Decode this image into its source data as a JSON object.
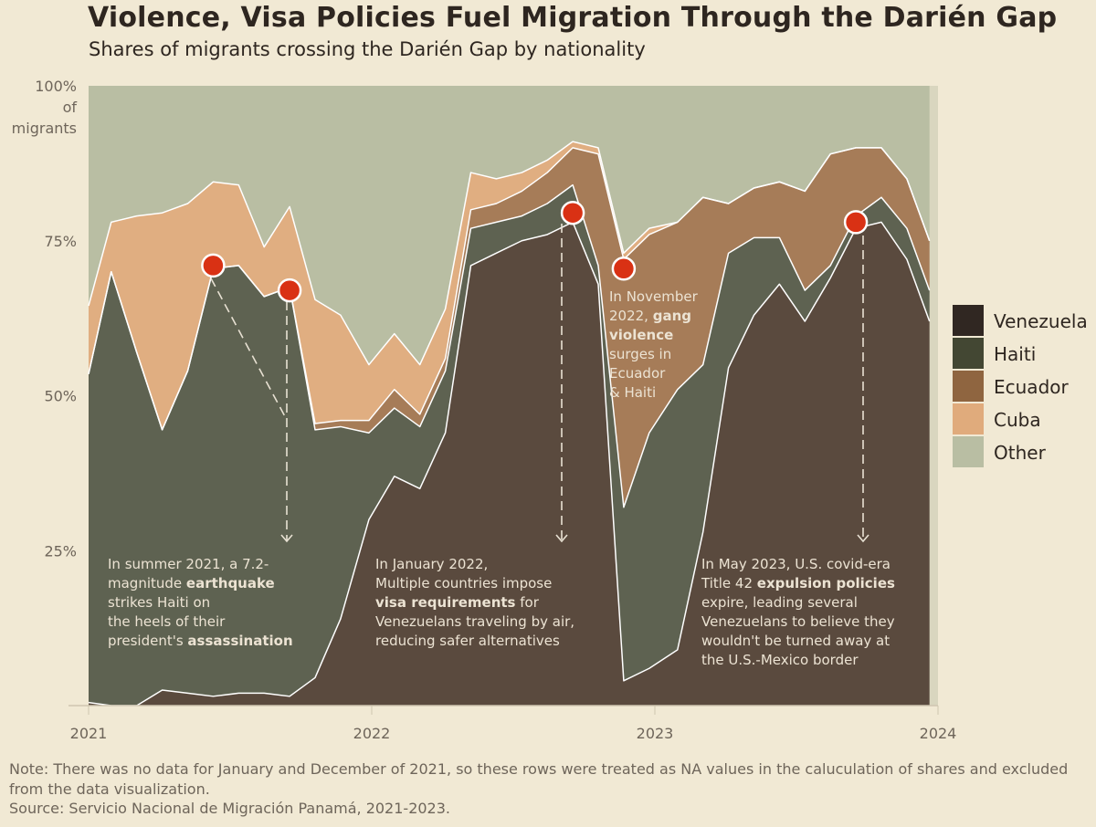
{
  "title": "Violence, Visa Policies Fuel Migration Through the Darién Gap",
  "subtitle": "Shares of migrants crossing the Darién Gap by nationality",
  "note": "Note: There was no data for January and December of 2021, so these rows were treated as NA values in the caluculation of shares and excluded from the data visualization.",
  "source": "Source: Servicio Nacional de Migración Panamá, 2021-2023.",
  "chart_data": {
    "type": "area",
    "stacked": true,
    "ylim": [
      0,
      100
    ],
    "y_ticks": [
      {
        "value": 100,
        "lines": [
          "100%",
          "of",
          "migrants"
        ]
      },
      {
        "value": 75,
        "lines": [
          "75%"
        ]
      },
      {
        "value": 50,
        "lines": [
          "50%"
        ]
      },
      {
        "value": 25,
        "lines": [
          "25%"
        ]
      }
    ],
    "x_ticks": [
      {
        "value": 2021.0,
        "label": "2021"
      },
      {
        "value": 2022.0,
        "label": "2022"
      },
      {
        "value": 2023.0,
        "label": "2023"
      },
      {
        "value": 2024.0,
        "label": "2024"
      }
    ],
    "xlim": [
      2021.0,
      2024.0
    ],
    "x": [
      2021.0,
      2021.08,
      2021.17,
      2021.26,
      2021.35,
      2021.44,
      2021.53,
      2021.62,
      2021.71,
      2021.8,
      2021.89,
      2021.99,
      2022.08,
      2022.17,
      2022.26,
      2022.35,
      2022.44,
      2022.53,
      2022.62,
      2022.71,
      2022.8,
      2022.89,
      2022.98,
      2023.08,
      2023.17,
      2023.26,
      2023.35,
      2023.44,
      2023.53,
      2023.62,
      2023.71,
      2023.8,
      2023.89,
      2023.97
    ],
    "series": [
      {
        "name": "Venezuela",
        "color": "#5a4a3e",
        "values": [
          0.5,
          0,
          0,
          2.5,
          2,
          1.5,
          2,
          2,
          1.5,
          4.5,
          14,
          30,
          37,
          35,
          44,
          71,
          73,
          75,
          76,
          78,
          68,
          4,
          6,
          9,
          28,
          54.5,
          63,
          68,
          62,
          69,
          77,
          78,
          72,
          62
        ]
      },
      {
        "name": "Haiti",
        "color": "#5e6251",
        "values": [
          53,
          70,
          57,
          42,
          52,
          69,
          69,
          64,
          66,
          40,
          31,
          14,
          11,
          10,
          10,
          6,
          5,
          4,
          5,
          6,
          3,
          28,
          38,
          42,
          27,
          18.5,
          12.5,
          7.5,
          5,
          2,
          2,
          4,
          5,
          5
        ]
      },
      {
        "name": "Ecuador",
        "color": "#a67c58",
        "values": [
          0,
          0,
          0,
          0,
          0,
          0,
          0,
          0,
          0,
          1,
          1,
          2,
          3,
          2,
          2,
          3,
          3,
          4,
          5,
          6,
          18,
          40,
          32,
          27,
          27,
          8,
          8,
          9,
          16,
          18,
          11,
          8,
          8,
          8
        ]
      },
      {
        "name": "Cuba",
        "color": "#e0ae81",
        "values": [
          11,
          8,
          22,
          35,
          27,
          14,
          13,
          8,
          13,
          20,
          17,
          9,
          9,
          8,
          8,
          6,
          4,
          3,
          2,
          1,
          1,
          1,
          1,
          0,
          0,
          0,
          0,
          0,
          0,
          0,
          0,
          0,
          0,
          0
        ]
      },
      {
        "name": "Other",
        "color": "#b9bea3",
        "values": [
          35.5,
          22,
          21,
          20.5,
          19,
          15.5,
          16,
          26,
          19.5,
          34.5,
          37,
          45,
          40,
          45,
          36,
          14,
          15,
          14,
          12,
          9,
          10,
          27,
          23,
          22,
          18,
          19,
          16.5,
          15.5,
          17,
          11,
          10,
          10,
          15,
          25
        ]
      }
    ],
    "legend": {
      "position": "right",
      "items": [
        {
          "label": "Venezuela",
          "color": "#302722"
        },
        {
          "label": "Haiti",
          "color": "#434733"
        },
        {
          "label": "Ecuador",
          "color": "#8f6540"
        },
        {
          "label": "Cuba",
          "color": "#e0ab7c"
        },
        {
          "label": "Other",
          "color": "#b9bea3"
        }
      ]
    },
    "markers": [
      {
        "x": 2021.44,
        "y": 71
      },
      {
        "x": 2021.71,
        "y": 67
      },
      {
        "x": 2022.71,
        "y": 79.5
      },
      {
        "x": 2022.89,
        "y": 70.5
      },
      {
        "x": 2023.71,
        "y": 78
      }
    ],
    "annotations": [
      {
        "lines": [
          [
            {
              "t": "In summer 2021, a 7.2-",
              "b": false
            }
          ],
          [
            {
              "t": "magnitude ",
              "b": false
            },
            {
              "t": "earthquake",
              "b": true
            }
          ],
          [
            {
              "t": "strikes Haiti on",
              "b": false
            }
          ],
          [
            {
              "t": "the heels of their",
              "b": false
            }
          ],
          [
            {
              "t": "president's ",
              "b": false
            },
            {
              "t": "assassination",
              "b": true
            }
          ]
        ]
      },
      {
        "lines": [
          [
            {
              "t": "In January 2022,",
              "b": false
            }
          ],
          [
            {
              "t": "Multiple countries impose",
              "b": false
            }
          ],
          [
            {
              "t": "visa requirements",
              "b": true
            },
            {
              "t": " for",
              "b": false
            }
          ],
          [
            {
              "t": "Venezuelans traveling by air,",
              "b": false
            }
          ],
          [
            {
              "t": "reducing safer alternatives",
              "b": false
            }
          ]
        ]
      },
      {
        "lines": [
          [
            {
              "t": "In November",
              "b": false
            }
          ],
          [
            {
              "t": "2022, ",
              "b": false
            },
            {
              "t": "gang",
              "b": true
            }
          ],
          [
            {
              "t": "violence",
              "b": true
            }
          ],
          [
            {
              "t": "surges in",
              "b": false
            }
          ],
          [
            {
              "t": "Ecuador",
              "b": false
            }
          ],
          [
            {
              "t": "& Haiti",
              "b": false
            }
          ]
        ]
      },
      {
        "lines": [
          [
            {
              "t": "In May 2023, ",
              "b": false
            },
            {
              "t": "U.S. covid-era",
              "b": false
            }
          ],
          [
            {
              "t": "Title 42 ",
              "b": false
            },
            {
              "t": "expulsion policies",
              "b": true
            }
          ],
          [
            {
              "t": "expire, leading several",
              "b": false
            }
          ],
          [
            {
              "t": "Venezuelans to believe they",
              "b": false
            }
          ],
          [
            {
              "t": "wouldn't be turned away at",
              "b": false
            }
          ],
          [
            {
              "t": "the U.S.-Mexico border",
              "b": false
            }
          ]
        ]
      }
    ]
  }
}
